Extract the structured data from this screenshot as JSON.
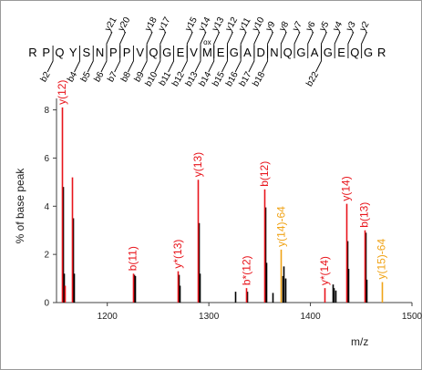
{
  "sequence": {
    "residues": [
      "R",
      "P",
      "Q",
      "Y",
      "S",
      "N",
      "P",
      "P",
      "V",
      "Q",
      "G",
      "E",
      "V",
      "M",
      "E",
      "G",
      "A",
      "D",
      "N",
      "Q",
      "G",
      "A",
      "G",
      "E",
      "Q",
      "G",
      "R"
    ],
    "modification": {
      "residue_index": 13,
      "label": "ox"
    },
    "y_ions": [
      {
        "label": "y21",
        "after": 5
      },
      {
        "label": "y20",
        "after": 6
      },
      {
        "label": "y18",
        "after": 8
      },
      {
        "label": "y17",
        "after": 9
      },
      {
        "label": "y15",
        "after": 11
      },
      {
        "label": "y14",
        "after": 12
      },
      {
        "label": "y13",
        "after": 13
      },
      {
        "label": "y12",
        "after": 14
      },
      {
        "label": "y11",
        "after": 15
      },
      {
        "label": "y10",
        "after": 16
      },
      {
        "label": "y9",
        "after": 17
      },
      {
        "label": "y8",
        "after": 18
      },
      {
        "label": "y7",
        "after": 19
      },
      {
        "label": "y6",
        "after": 20
      },
      {
        "label": "y5",
        "after": 21
      },
      {
        "label": "y4",
        "after": 22
      },
      {
        "label": "y3",
        "after": 23
      },
      {
        "label": "y2",
        "after": 24
      }
    ],
    "b_ions": [
      {
        "label": "b2",
        "after": 1
      },
      {
        "label": "b4",
        "after": 3
      },
      {
        "label": "b5",
        "after": 4
      },
      {
        "label": "b6",
        "after": 5
      },
      {
        "label": "b7",
        "after": 6
      },
      {
        "label": "b8",
        "after": 7
      },
      {
        "label": "b9",
        "after": 8
      },
      {
        "label": "b10",
        "after": 9
      },
      {
        "label": "b11",
        "after": 10
      },
      {
        "label": "b12",
        "after": 11
      },
      {
        "label": "b13",
        "after": 12
      },
      {
        "label": "b14",
        "after": 13
      },
      {
        "label": "b15",
        "after": 14
      },
      {
        "label": "b16",
        "after": 15
      },
      {
        "label": "b17",
        "after": 16
      },
      {
        "label": "b18",
        "after": 17
      },
      {
        "label": "b22",
        "after": 21
      }
    ]
  },
  "chart_data": {
    "type": "bar",
    "xlabel": "m/z",
    "ylabel": "% of base peak",
    "xlim": [
      1150,
      1500
    ],
    "ylim": [
      0,
      8.4
    ],
    "xticks": [
      1200,
      1300,
      1400,
      1500
    ],
    "yticks": [
      0,
      2,
      4,
      6,
      8
    ],
    "colors": {
      "annotated": "#e8141b",
      "neutral_loss": "#f0a316",
      "unannotated": "#000000",
      "axis": "#404040"
    },
    "series": [
      {
        "name": "annotated",
        "peaks": [
          {
            "x": 1155.5,
            "y": 8.1
          },
          {
            "x": 1158.0,
            "y": 0.7
          },
          {
            "x": 1165.5,
            "y": 5.2
          },
          {
            "x": 1225.0,
            "y": 1.2
          },
          {
            "x": 1269.5,
            "y": 1.3
          },
          {
            "x": 1289.0,
            "y": 5.1
          },
          {
            "x": 1337.0,
            "y": 0.6
          },
          {
            "x": 1354.5,
            "y": 4.7
          },
          {
            "x": 1414.0,
            "y": 0.6
          },
          {
            "x": 1435.0,
            "y": 4.1
          },
          {
            "x": 1453.0,
            "y": 3.0
          }
        ]
      },
      {
        "name": "neutral_loss",
        "peaks": [
          {
            "x": 1371.0,
            "y": 2.2
          },
          {
            "x": 1470.0,
            "y": 0.85
          }
        ]
      },
      {
        "name": "unannotated",
        "peaks": [
          {
            "x": 1156.5,
            "y": 4.8
          },
          {
            "x": 1157.3,
            "y": 1.2
          },
          {
            "x": 1166.5,
            "y": 3.5
          },
          {
            "x": 1167.3,
            "y": 1.2
          },
          {
            "x": 1226.0,
            "y": 1.15
          },
          {
            "x": 1227.0,
            "y": 1.1
          },
          {
            "x": 1270.5,
            "y": 1.15
          },
          {
            "x": 1271.3,
            "y": 0.7
          },
          {
            "x": 1290.0,
            "y": 3.3
          },
          {
            "x": 1291.0,
            "y": 1.2
          },
          {
            "x": 1326.0,
            "y": 0.45
          },
          {
            "x": 1338.0,
            "y": 0.45
          },
          {
            "x": 1355.5,
            "y": 3.95
          },
          {
            "x": 1356.5,
            "y": 1.65
          },
          {
            "x": 1363.0,
            "y": 0.4
          },
          {
            "x": 1372.5,
            "y": 1.1
          },
          {
            "x": 1373.5,
            "y": 1.5
          },
          {
            "x": 1375.0,
            "y": 1.0
          },
          {
            "x": 1422.0,
            "y": 0.75
          },
          {
            "x": 1423.0,
            "y": 0.6
          },
          {
            "x": 1425.0,
            "y": 0.5
          },
          {
            "x": 1436.0,
            "y": 2.55
          },
          {
            "x": 1437.0,
            "y": 1.4
          },
          {
            "x": 1454.0,
            "y": 2.9
          },
          {
            "x": 1455.0,
            "y": 0.95
          }
        ]
      }
    ],
    "annotations": [
      {
        "text": "y(12)",
        "x": 1155.5,
        "y": 8.1,
        "color": "#e8141b"
      },
      {
        "text": "b(11)",
        "x": 1225.0,
        "y": 1.2,
        "color": "#e8141b"
      },
      {
        "text": "y*(13)",
        "x": 1269.5,
        "y": 1.3,
        "color": "#e8141b"
      },
      {
        "text": "y(13)",
        "x": 1289.0,
        "y": 5.1,
        "color": "#e8141b"
      },
      {
        "text": "b*(12)",
        "x": 1337.0,
        "y": 0.6,
        "color": "#e8141b"
      },
      {
        "text": "b(12)",
        "x": 1354.5,
        "y": 4.7,
        "color": "#e8141b"
      },
      {
        "text": "y(14)-64",
        "x": 1371.0,
        "y": 2.2,
        "color": "#f0a316"
      },
      {
        "text": "y*(14)",
        "x": 1414.0,
        "y": 0.6,
        "color": "#e8141b"
      },
      {
        "text": "y(14)",
        "x": 1435.0,
        "y": 4.1,
        "color": "#e8141b"
      },
      {
        "text": "b(13)",
        "x": 1453.0,
        "y": 3.0,
        "color": "#e8141b"
      },
      {
        "text": "y(15)-64",
        "x": 1470.0,
        "y": 0.85,
        "color": "#f0a316"
      }
    ]
  }
}
